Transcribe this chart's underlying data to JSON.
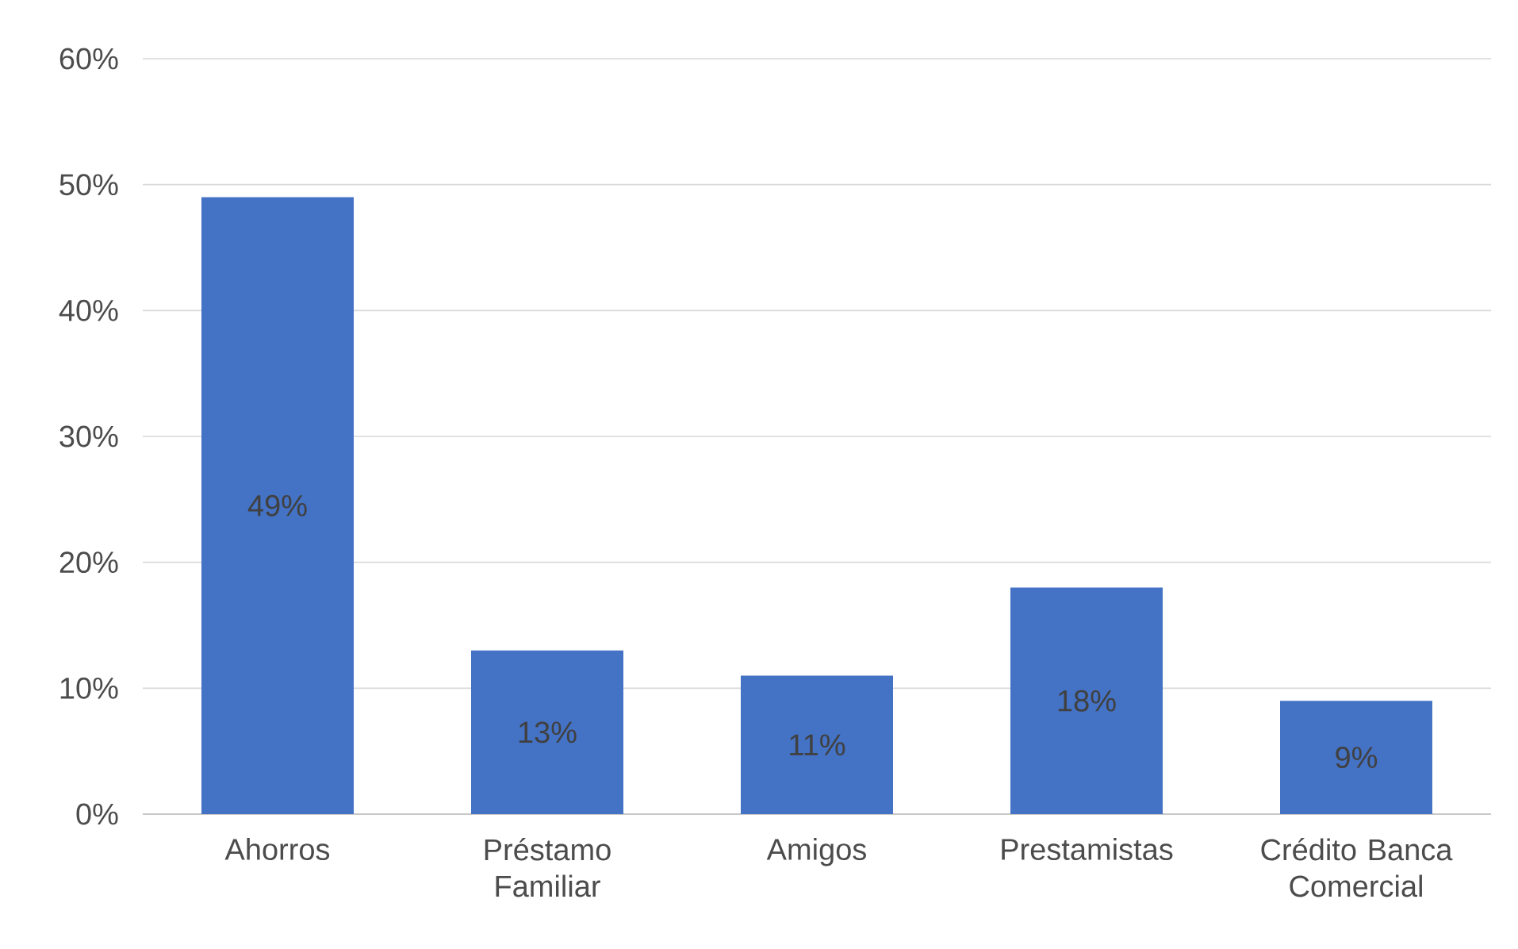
{
  "chart_data": {
    "type": "bar",
    "categories": [
      "Ahorros",
      "Préstamo Familiar",
      "Amigos",
      "Prestamistas",
      "Crédito Banca Comercial"
    ],
    "values": [
      49,
      13,
      11,
      18,
      9
    ],
    "value_labels": [
      "49%",
      "13%",
      "11%",
      "18%",
      "9%"
    ],
    "color": "#4472c4",
    "ylim": [
      0,
      60
    ],
    "yticks": [
      {
        "value": 0,
        "label": "0%"
      },
      {
        "value": 10,
        "label": "10%"
      },
      {
        "value": 20,
        "label": "20%"
      },
      {
        "value": 30,
        "label": "30%"
      },
      {
        "value": 40,
        "label": "40%"
      },
      {
        "value": 50,
        "label": "50%"
      },
      {
        "value": 60,
        "label": "60%"
      }
    ],
    "grid": "y"
  }
}
